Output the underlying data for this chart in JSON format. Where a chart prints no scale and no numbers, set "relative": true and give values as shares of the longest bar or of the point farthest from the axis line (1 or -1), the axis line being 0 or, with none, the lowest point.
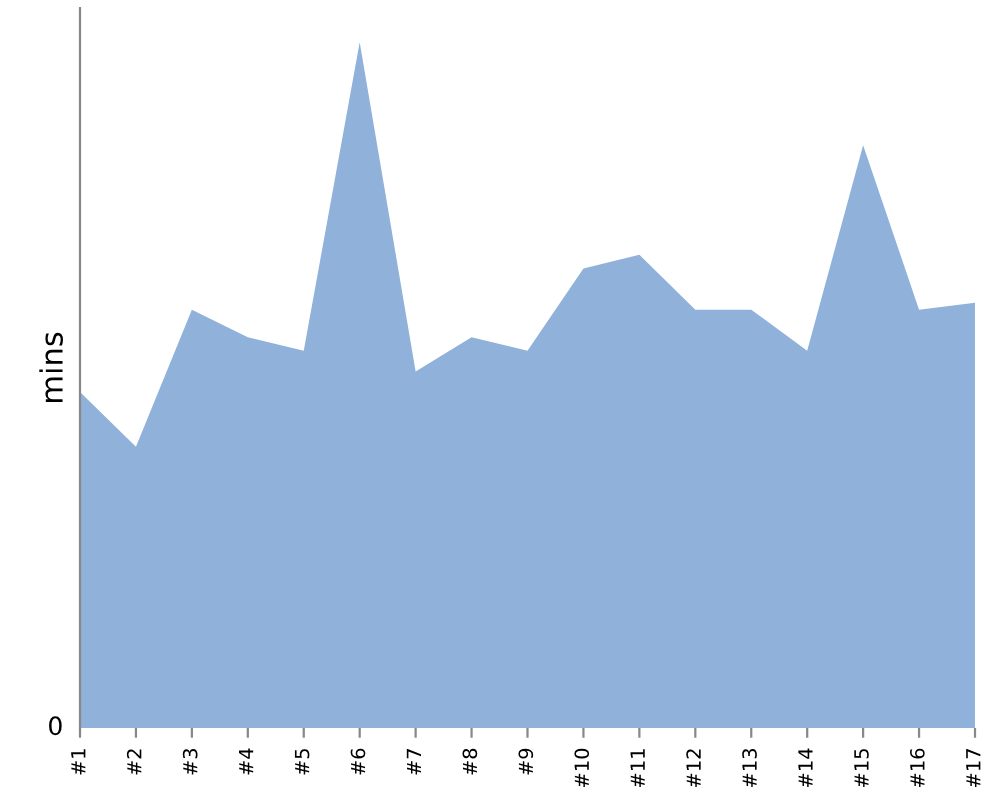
{
  "chart_data": {
    "type": "area",
    "relative": true,
    "ylabel": "mins",
    "categories": [
      "#1",
      "#2",
      "#3",
      "#4",
      "#5",
      "#6",
      "#7",
      "#8",
      "#9",
      "#10",
      "#11",
      "#12",
      "#13",
      "#14",
      "#15",
      "#16",
      "#17"
    ],
    "annotations": [
      "0"
    ],
    "series": [
      {
        "color": "#8fb1da",
        "values": [
          0.49,
          0.41,
          0.61,
          0.57,
          0.55,
          1,
          0.52,
          0.57,
          0.55,
          0.67,
          0.69,
          0.61,
          0.61,
          0.55,
          0.85,
          0.61,
          0.62
        ]
      }
    ],
    "legend": false
  }
}
